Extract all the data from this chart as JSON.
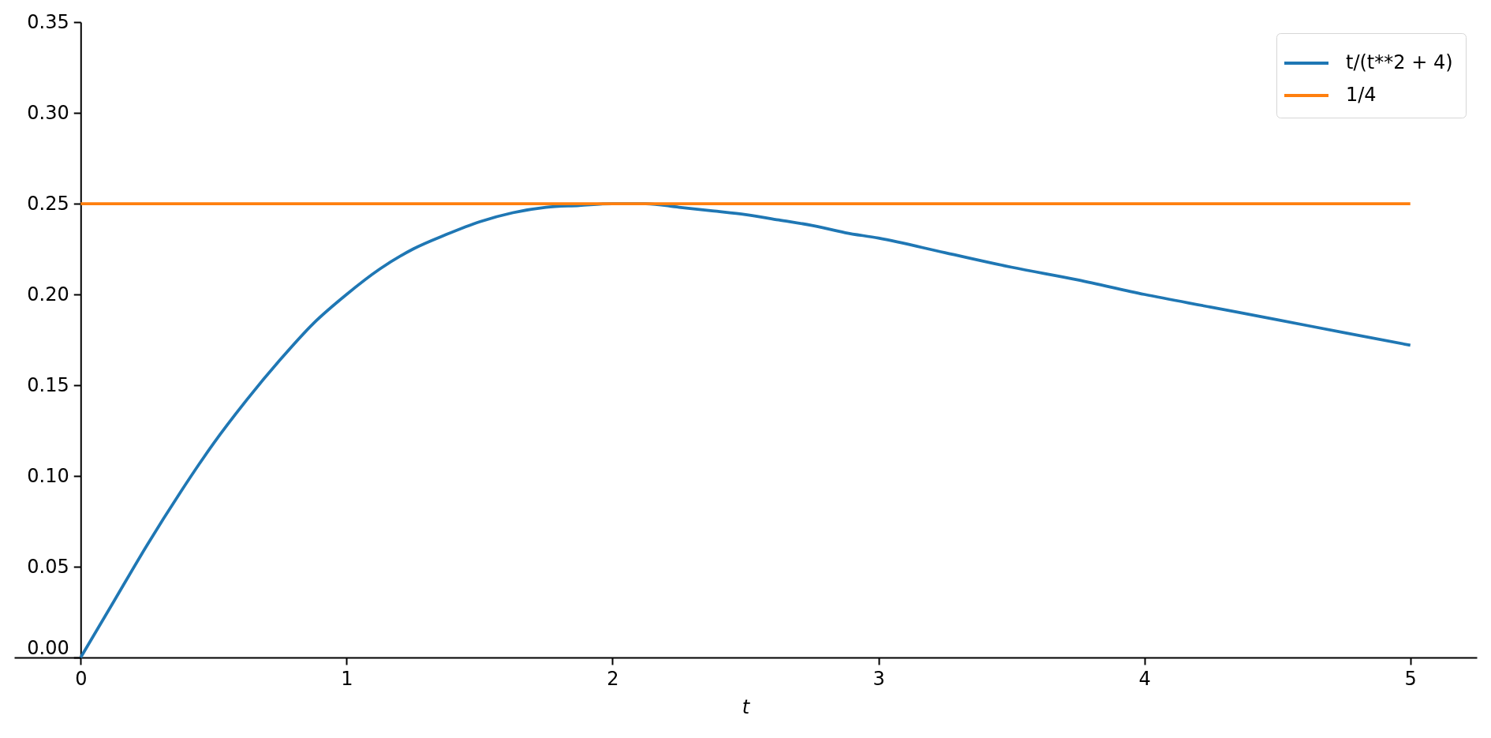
{
  "chart_data": {
    "type": "line",
    "xlabel": "t",
    "xlim": [
      -0.25,
      5.25
    ],
    "xticks": [
      0,
      1,
      2,
      3,
      4,
      5
    ],
    "ylim": [
      0,
      0.35
    ],
    "yticks": [
      {
        "value": 0,
        "label": "0.00"
      },
      {
        "value": 0.05,
        "label": "0.05"
      },
      {
        "value": 0.1,
        "label": "0.10"
      },
      {
        "value": 0.15,
        "label": "0.15"
      },
      {
        "value": 0.2,
        "label": "0.20"
      },
      {
        "value": 0.25,
        "label": "0.25"
      },
      {
        "value": 0.3,
        "label": "0.30"
      },
      {
        "value": 0.35,
        "label": "0.35"
      }
    ],
    "legend": "top right",
    "series": [
      {
        "name": "t/(t**2 + 4)",
        "color": "#1f77b4",
        "x": [
          0,
          0.125,
          0.25,
          0.375,
          0.5,
          0.625,
          0.75,
          0.875,
          1,
          1.125,
          1.25,
          1.375,
          1.5,
          1.625,
          1.75,
          1.875,
          2,
          2.125,
          2.25,
          2.375,
          2.5,
          2.625,
          2.75,
          2.875,
          3,
          3.25,
          3.5,
          3.75,
          4,
          4.25,
          4.5,
          4.75,
          5
        ],
        "values": [
          0,
          0.031,
          0.062,
          0.091,
          0.118,
          0.142,
          0.164,
          0.184,
          0.2,
          0.214,
          0.225,
          0.233,
          0.24,
          0.245,
          0.248,
          0.249,
          0.25,
          0.25,
          0.248,
          0.246,
          0.244,
          0.241,
          0.238,
          0.234,
          0.231,
          0.223,
          0.215,
          0.208,
          0.2,
          0.193,
          0.186,
          0.179,
          0.172
        ]
      },
      {
        "name": "1/4",
        "color": "#ff7f0e",
        "x": [
          0,
          5
        ],
        "values": [
          0.25,
          0.25
        ]
      }
    ]
  }
}
